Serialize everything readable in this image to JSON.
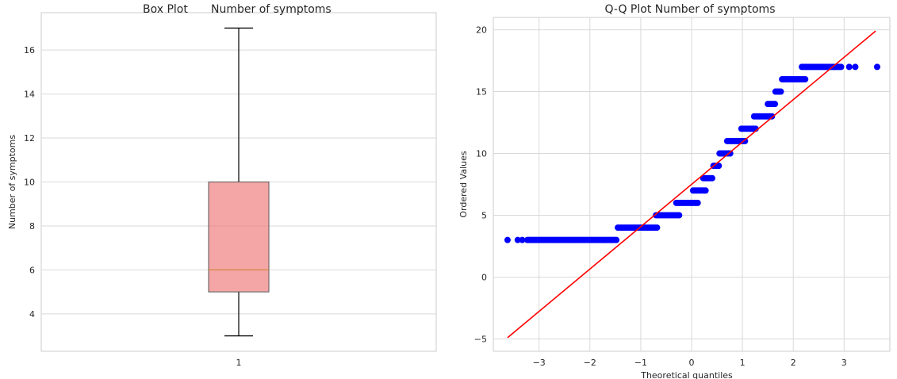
{
  "chart_data": [
    {
      "type": "box",
      "title_left": "Box Plot",
      "title_right": "Number of symptoms",
      "ylabel": "Number of symptoms",
      "xlabel": "",
      "categories": [
        "1"
      ],
      "ylim": [
        2.3,
        17.7
      ],
      "yticks": [
        4,
        6,
        8,
        10,
        12,
        14,
        16
      ],
      "box": {
        "whisker_low": 3,
        "q1": 5,
        "median": 6,
        "q3": 10,
        "whisker_high": 17
      },
      "box_color": "#f08080",
      "median_color": "#d4883c",
      "grid": true
    },
    {
      "type": "scatter",
      "title": "Q-Q Plot Number of symptoms",
      "xlabel": "Theoretical quantiles",
      "ylabel": "Ordered Values",
      "xlim": [
        -3.9,
        3.9
      ],
      "ylim": [
        -6.0,
        21.0
      ],
      "xticks": [
        -3,
        -2,
        -1,
        0,
        1,
        2,
        3
      ],
      "yticks": [
        -5,
        0,
        5,
        10,
        15,
        20
      ],
      "grid": true,
      "point_color": "#0000ff",
      "line_color": "#ff0000",
      "fit_line": {
        "x": [
          -3.62,
          3.62
        ],
        "y": [
          -4.9,
          19.9
        ]
      },
      "steps": [
        {
          "y": 3,
          "x_start": -3.23,
          "x_end": -1.45,
          "outliers_x": [
            -3.62,
            -3.42,
            -3.33
          ]
        },
        {
          "y": 4,
          "x_start": -1.45,
          "x_end": -0.67,
          "outliers_x": []
        },
        {
          "y": 5,
          "x_start": -0.7,
          "x_end": -0.22,
          "outliers_x": []
        },
        {
          "y": 6,
          "x_start": -0.3,
          "x_end": 0.12,
          "outliers_x": []
        },
        {
          "y": 7,
          "x_start": 0.03,
          "x_end": 0.28,
          "outliers_x": []
        },
        {
          "y": 8,
          "x_start": 0.23,
          "x_end": 0.43,
          "outliers_x": []
        },
        {
          "y": 9,
          "x_start": 0.43,
          "x_end": 0.55,
          "outliers_x": []
        },
        {
          "y": 10,
          "x_start": 0.55,
          "x_end": 0.78,
          "outliers_x": []
        },
        {
          "y": 11,
          "x_start": 0.7,
          "x_end": 1.05,
          "outliers_x": []
        },
        {
          "y": 12,
          "x_start": 0.98,
          "x_end": 1.28,
          "outliers_x": []
        },
        {
          "y": 13,
          "x_start": 1.23,
          "x_end": 1.58,
          "outliers_x": []
        },
        {
          "y": 14,
          "x_start": 1.5,
          "x_end": 1.65,
          "outliers_x": []
        },
        {
          "y": 15,
          "x_start": 1.65,
          "x_end": 1.78,
          "outliers_x": []
        },
        {
          "y": 16,
          "x_start": 1.78,
          "x_end": 2.25,
          "outliers_x": []
        },
        {
          "y": 17,
          "x_start": 2.17,
          "x_end": 2.95,
          "outliers_x": [
            3.1,
            3.22,
            3.65
          ]
        }
      ]
    }
  ]
}
